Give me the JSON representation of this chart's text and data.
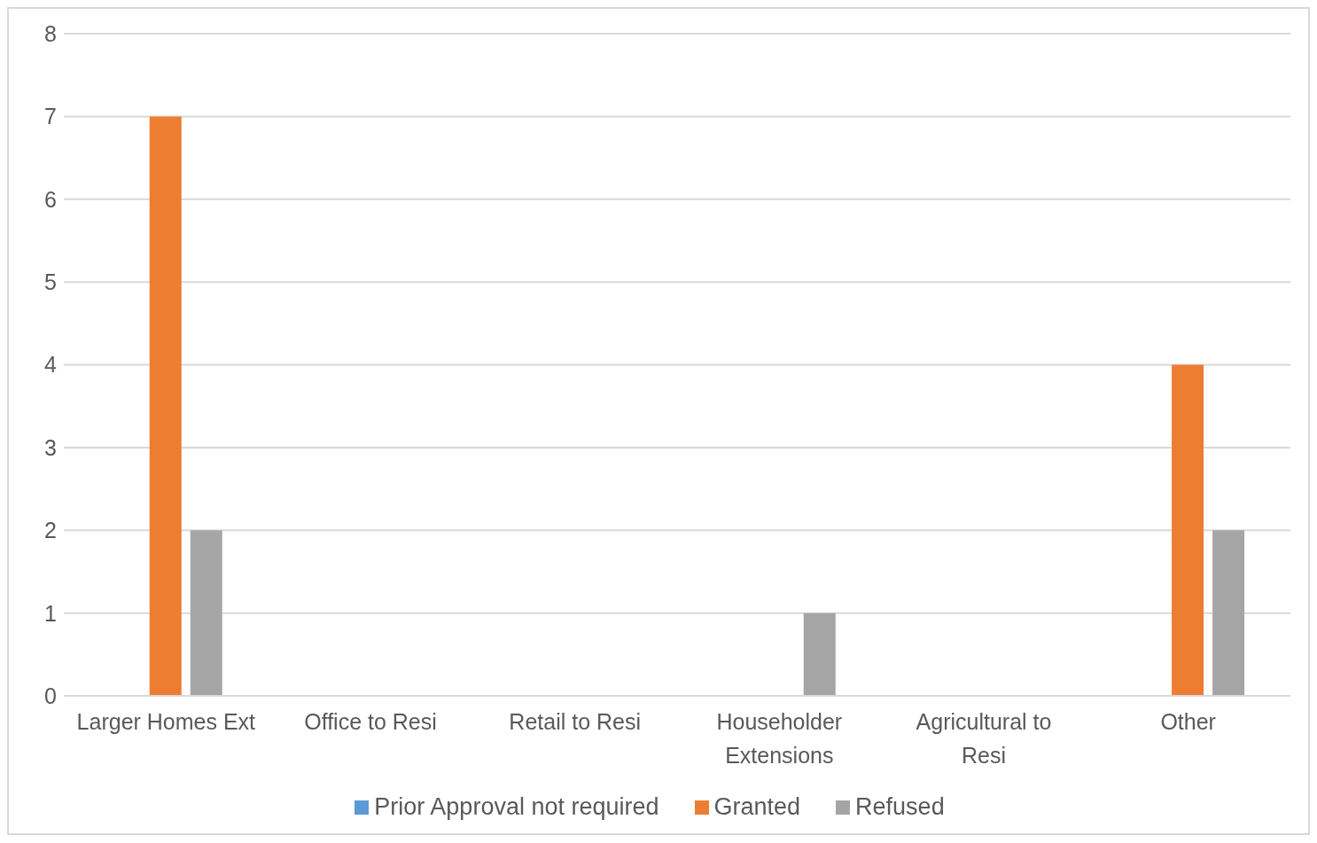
{
  "chart_data": {
    "type": "bar",
    "categories": [
      "Larger Homes Ext",
      "Office to Resi",
      "Retail to Resi",
      "Householder Extensions",
      "Agricultural to Resi",
      "Other"
    ],
    "series": [
      {
        "name": "Prior Approval not required",
        "color": "#5b9bd5",
        "values": [
          0,
          0,
          0,
          0,
          0,
          0
        ]
      },
      {
        "name": "Granted",
        "color": "#ed7d31",
        "values": [
          7,
          0,
          0,
          0,
          0,
          4
        ]
      },
      {
        "name": "Refused",
        "color": "#a5a5a5",
        "values": [
          2,
          0,
          0,
          1,
          0,
          2
        ]
      }
    ],
    "ylim": [
      0,
      8
    ],
    "yticks": [
      0,
      1,
      2,
      3,
      4,
      5,
      6,
      7,
      8
    ],
    "grid": "y",
    "legend": "bottom"
  }
}
